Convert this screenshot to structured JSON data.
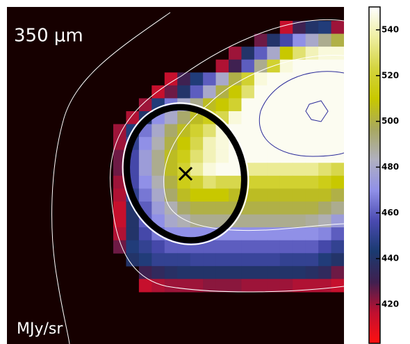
{
  "chart_data": {
    "type": "heatmap",
    "title": "350 μm",
    "colorbar_label": "MJy/sr",
    "clim": [
      403,
      550
    ],
    "cticks": [
      420,
      440,
      460,
      480,
      500,
      520,
      540
    ],
    "colormap": [
      "#ff1010",
      "#c01030",
      "#402050",
      "#1a3a70",
      "#4a4ab0",
      "#9090e8",
      "#b0b0c0",
      "#a8a860",
      "#c8c800",
      "#d4d440",
      "#eeeea0",
      "#ffffff"
    ],
    "values": [
      [
        null,
        null,
        null,
        null,
        null,
        null,
        null,
        null,
        null,
        null,
        null,
        null,
        null,
        415,
        430,
        440,
        445,
        420
      ],
      [
        null,
        null,
        null,
        null,
        null,
        null,
        null,
        null,
        null,
        null,
        null,
        425,
        440,
        455,
        470,
        480,
        490,
        500
      ],
      [
        null,
        null,
        null,
        null,
        null,
        null,
        null,
        null,
        null,
        420,
        440,
        460,
        480,
        510,
        530,
        540,
        545,
        545
      ],
      [
        null,
        null,
        null,
        null,
        null,
        null,
        null,
        null,
        418,
        430,
        460,
        490,
        520,
        545,
        548,
        548,
        548,
        548
      ],
      [
        null,
        null,
        null,
        null,
        415,
        430,
        445,
        460,
        480,
        500,
        520,
        545,
        548,
        548,
        548,
        548,
        548,
        548
      ],
      [
        null,
        null,
        null,
        415,
        425,
        440,
        460,
        480,
        500,
        510,
        530,
        548,
        548,
        548,
        548,
        548,
        548,
        548
      ],
      [
        null,
        null,
        420,
        445,
        465,
        480,
        490,
        505,
        510,
        520,
        548,
        548,
        548,
        548,
        548,
        548,
        548,
        548
      ],
      [
        null,
        418,
        440,
        470,
        480,
        495,
        505,
        515,
        525,
        545,
        548,
        548,
        548,
        548,
        548,
        548,
        548,
        548
      ],
      [
        420,
        445,
        465,
        480,
        495,
        505,
        520,
        530,
        545,
        548,
        548,
        548,
        548,
        548,
        548,
        548,
        548,
        548
      ],
      [
        420,
        450,
        470,
        485,
        500,
        510,
        525,
        540,
        545,
        548,
        548,
        548,
        548,
        548,
        548,
        548,
        548,
        548
      ],
      [
        425,
        455,
        475,
        490,
        505,
        515,
        530,
        540,
        545,
        548,
        548,
        548,
        548,
        548,
        548,
        548,
        548,
        548
      ],
      [
        425,
        455,
        475,
        490,
        505,
        520,
        535,
        545,
        548,
        548,
        535,
        535,
        535,
        535,
        535,
        535,
        530,
        525
      ],
      [
        420,
        455,
        470,
        485,
        500,
        515,
        520,
        530,
        525,
        525,
        520,
        520,
        520,
        520,
        520,
        520,
        515,
        510
      ],
      [
        418,
        450,
        465,
        480,
        495,
        505,
        510,
        510,
        510,
        505,
        505,
        505,
        505,
        505,
        505,
        505,
        505,
        500
      ],
      [
        415,
        440,
        460,
        475,
        485,
        495,
        500,
        500,
        500,
        500,
        500,
        500,
        500,
        500,
        500,
        500,
        495,
        490
      ],
      [
        415,
        440,
        460,
        470,
        480,
        485,
        490,
        490,
        490,
        490,
        490,
        490,
        490,
        490,
        490,
        488,
        485,
        475
      ],
      [
        418,
        440,
        455,
        465,
        470,
        470,
        470,
        470,
        470,
        470,
        470,
        470,
        470,
        470,
        470,
        470,
        468,
        460
      ],
      [
        425,
        445,
        450,
        455,
        460,
        460,
        460,
        460,
        460,
        460,
        460,
        460,
        460,
        460,
        460,
        460,
        455,
        450
      ],
      [
        null,
        440,
        445,
        450,
        450,
        450,
        452,
        452,
        452,
        452,
        452,
        452,
        452,
        450,
        450,
        450,
        445,
        440
      ],
      [
        null,
        null,
        430,
        435,
        438,
        440,
        440,
        440,
        440,
        440,
        440,
        440,
        440,
        440,
        440,
        438,
        435,
        425
      ],
      [
        null,
        null,
        415,
        418,
        420,
        420,
        420,
        422,
        422,
        422,
        420,
        420,
        420,
        420,
        418,
        418,
        418,
        415
      ]
    ]
  }
}
